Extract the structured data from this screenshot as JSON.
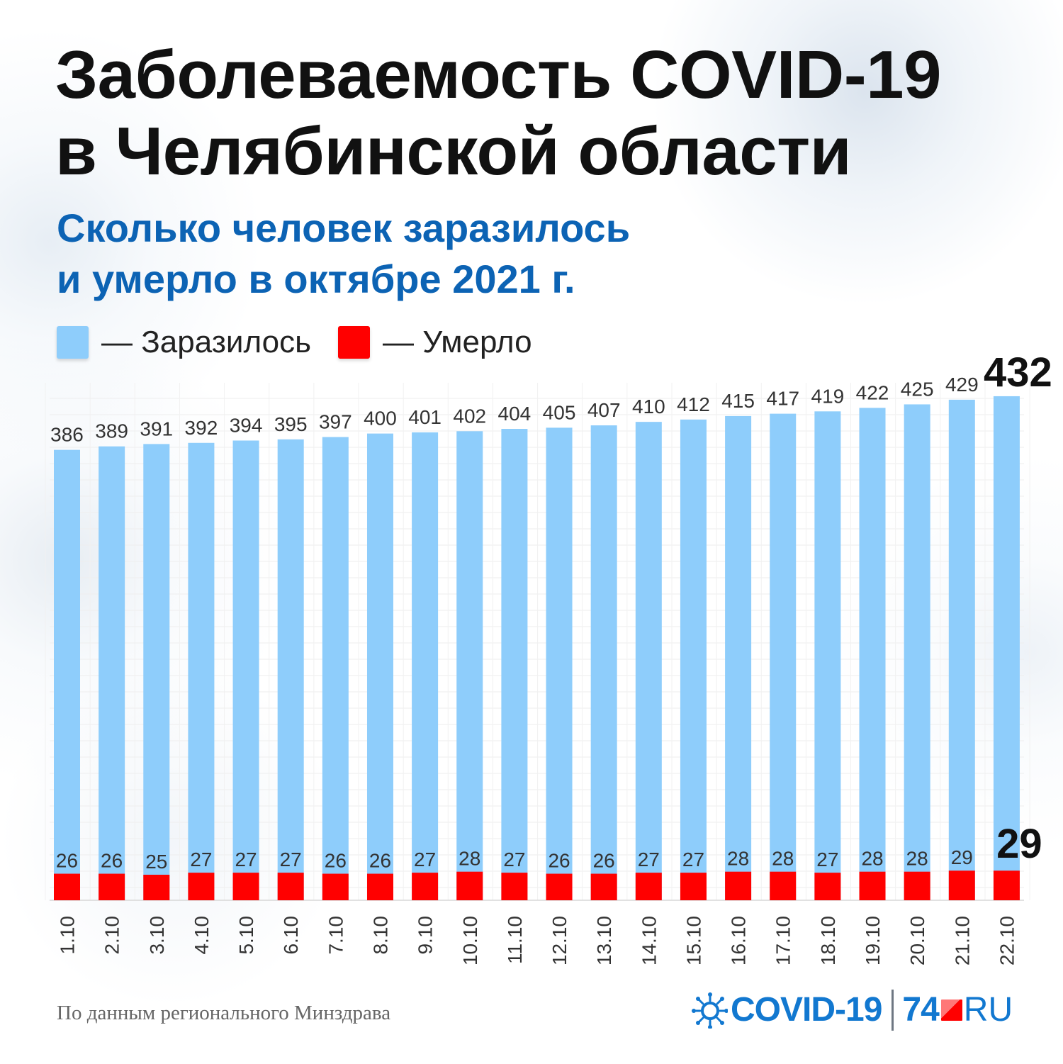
{
  "header": {
    "title_line1": "Заболеваемость COVID-19",
    "title_line2": "в Челябинской области",
    "subtitle_line1": "Сколько человек заразилось",
    "subtitle_line2": "и умерло в октябре 2021 г."
  },
  "legend": {
    "infected_label": "— Заразилось",
    "deaths_label": "— Умерло"
  },
  "chart_data": {
    "type": "bar",
    "title": "",
    "xlabel": "",
    "ylabel": "",
    "categories": [
      "1.10",
      "2.10",
      "3.10",
      "4.10",
      "5.10",
      "6.10",
      "7.10",
      "8.10",
      "9.10",
      "10.10",
      "11.10",
      "12.10",
      "13.10",
      "14.10",
      "15.10",
      "16.10",
      "17.10",
      "18.10",
      "19.10",
      "20.10",
      "21.10",
      "22.10"
    ],
    "series": [
      {
        "name": "Заразилось",
        "color": "#8ecdfb",
        "values": [
          386,
          389,
          391,
          392,
          394,
          395,
          397,
          400,
          401,
          402,
          404,
          405,
          407,
          410,
          412,
          415,
          417,
          419,
          422,
          425,
          429,
          432
        ]
      },
      {
        "name": "Умерло",
        "color": "#ff0000",
        "values": [
          26,
          26,
          25,
          27,
          27,
          27,
          26,
          26,
          27,
          28,
          27,
          26,
          26,
          27,
          27,
          28,
          28,
          27,
          28,
          28,
          29,
          29
        ]
      }
    ],
    "ylim": [
      0,
      432
    ],
    "grid": true,
    "legend_position": "top-left"
  },
  "footer": {
    "source": "По данным регионального Минздрава",
    "logo_covid": "COVID-19",
    "logo_number": "74",
    "logo_ru": "RU"
  },
  "icons": {
    "logo_mark": "virus-icon"
  }
}
